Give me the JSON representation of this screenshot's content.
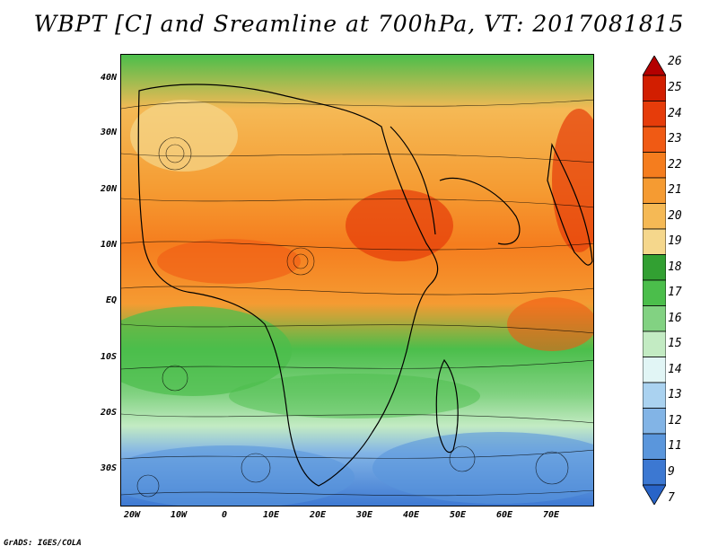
{
  "title": "WBPT [C] and Sreamline at 700hPa, VT: 2017081815",
  "credit": "GrADS: IGES/COLA",
  "lat_labels": [
    "40N",
    "30N",
    "20N",
    "10N",
    "EQ",
    "10S",
    "20S",
    "30S"
  ],
  "lon_labels": [
    "20W",
    "10W",
    "0",
    "10E",
    "20E",
    "30E",
    "40E",
    "50E",
    "60E",
    "70E"
  ],
  "colorbar": {
    "labels": [
      "26",
      "25",
      "24",
      "23",
      "22",
      "21",
      "20",
      "19",
      "18",
      "17",
      "16",
      "15",
      "14",
      "13",
      "12",
      "11",
      "9",
      "7"
    ],
    "colors": [
      "#b40000",
      "#d21e00",
      "#e63c0a",
      "#f05a14",
      "#f57d1e",
      "#f59b32",
      "#f5b955",
      "#f5d78c",
      "#32a032",
      "#4bbe4b",
      "#82d282",
      "#c3ebc3",
      "#e1f5f5",
      "#aad2f0",
      "#82b4e6",
      "#5a96dc",
      "#3c78d2",
      "#2864c8"
    ]
  }
}
